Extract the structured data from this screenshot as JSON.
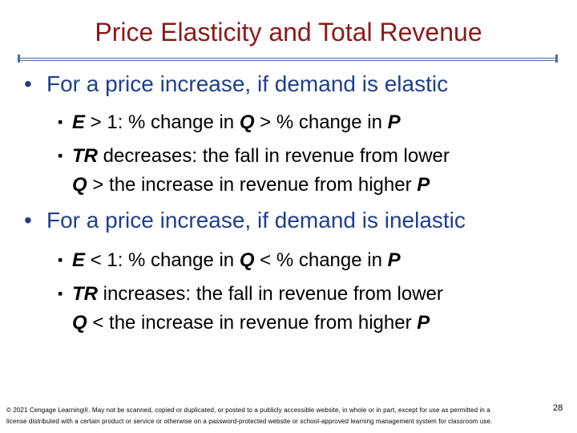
{
  "title": "Price Elasticity and Total Revenue",
  "bullets": [
    {
      "text": "For a price increase, if demand is elastic",
      "subs": [
        {
          "parts": [
            "E",
            " > 1: % change in ",
            "Q",
            " > % change in ",
            "P"
          ]
        },
        {
          "parts": [
            "TR",
            " decreases: the fall in revenue from lower"
          ],
          "cont": [
            "Q",
            " > the increase in revenue from higher ",
            "P"
          ]
        }
      ]
    },
    {
      "text": "For a price increase, if demand is inelastic",
      "subs": [
        {
          "parts": [
            "E",
            " < 1: % change in ",
            "Q",
            " < % change in ",
            "P"
          ]
        },
        {
          "parts": [
            "TR",
            " increases: the fall in revenue from lower"
          ],
          "cont": [
            "Q",
            " < the increase in revenue from higher ",
            "P"
          ]
        }
      ]
    }
  ],
  "footer": {
    "line1": "© 2021 Cengage Learning®. May not be scanned, copied or duplicated, or posted to a publicly accessible website, in whole or in part, except for use as permitted in a",
    "line2": "license distributed with a certain product or service or otherwise on a password-protected website or school-approved learning management system for classroom use."
  },
  "page_number": "28",
  "colors": {
    "title": "#8b1a1a",
    "bullet": "#1f3f8c",
    "rule": "#4a6fa5"
  }
}
